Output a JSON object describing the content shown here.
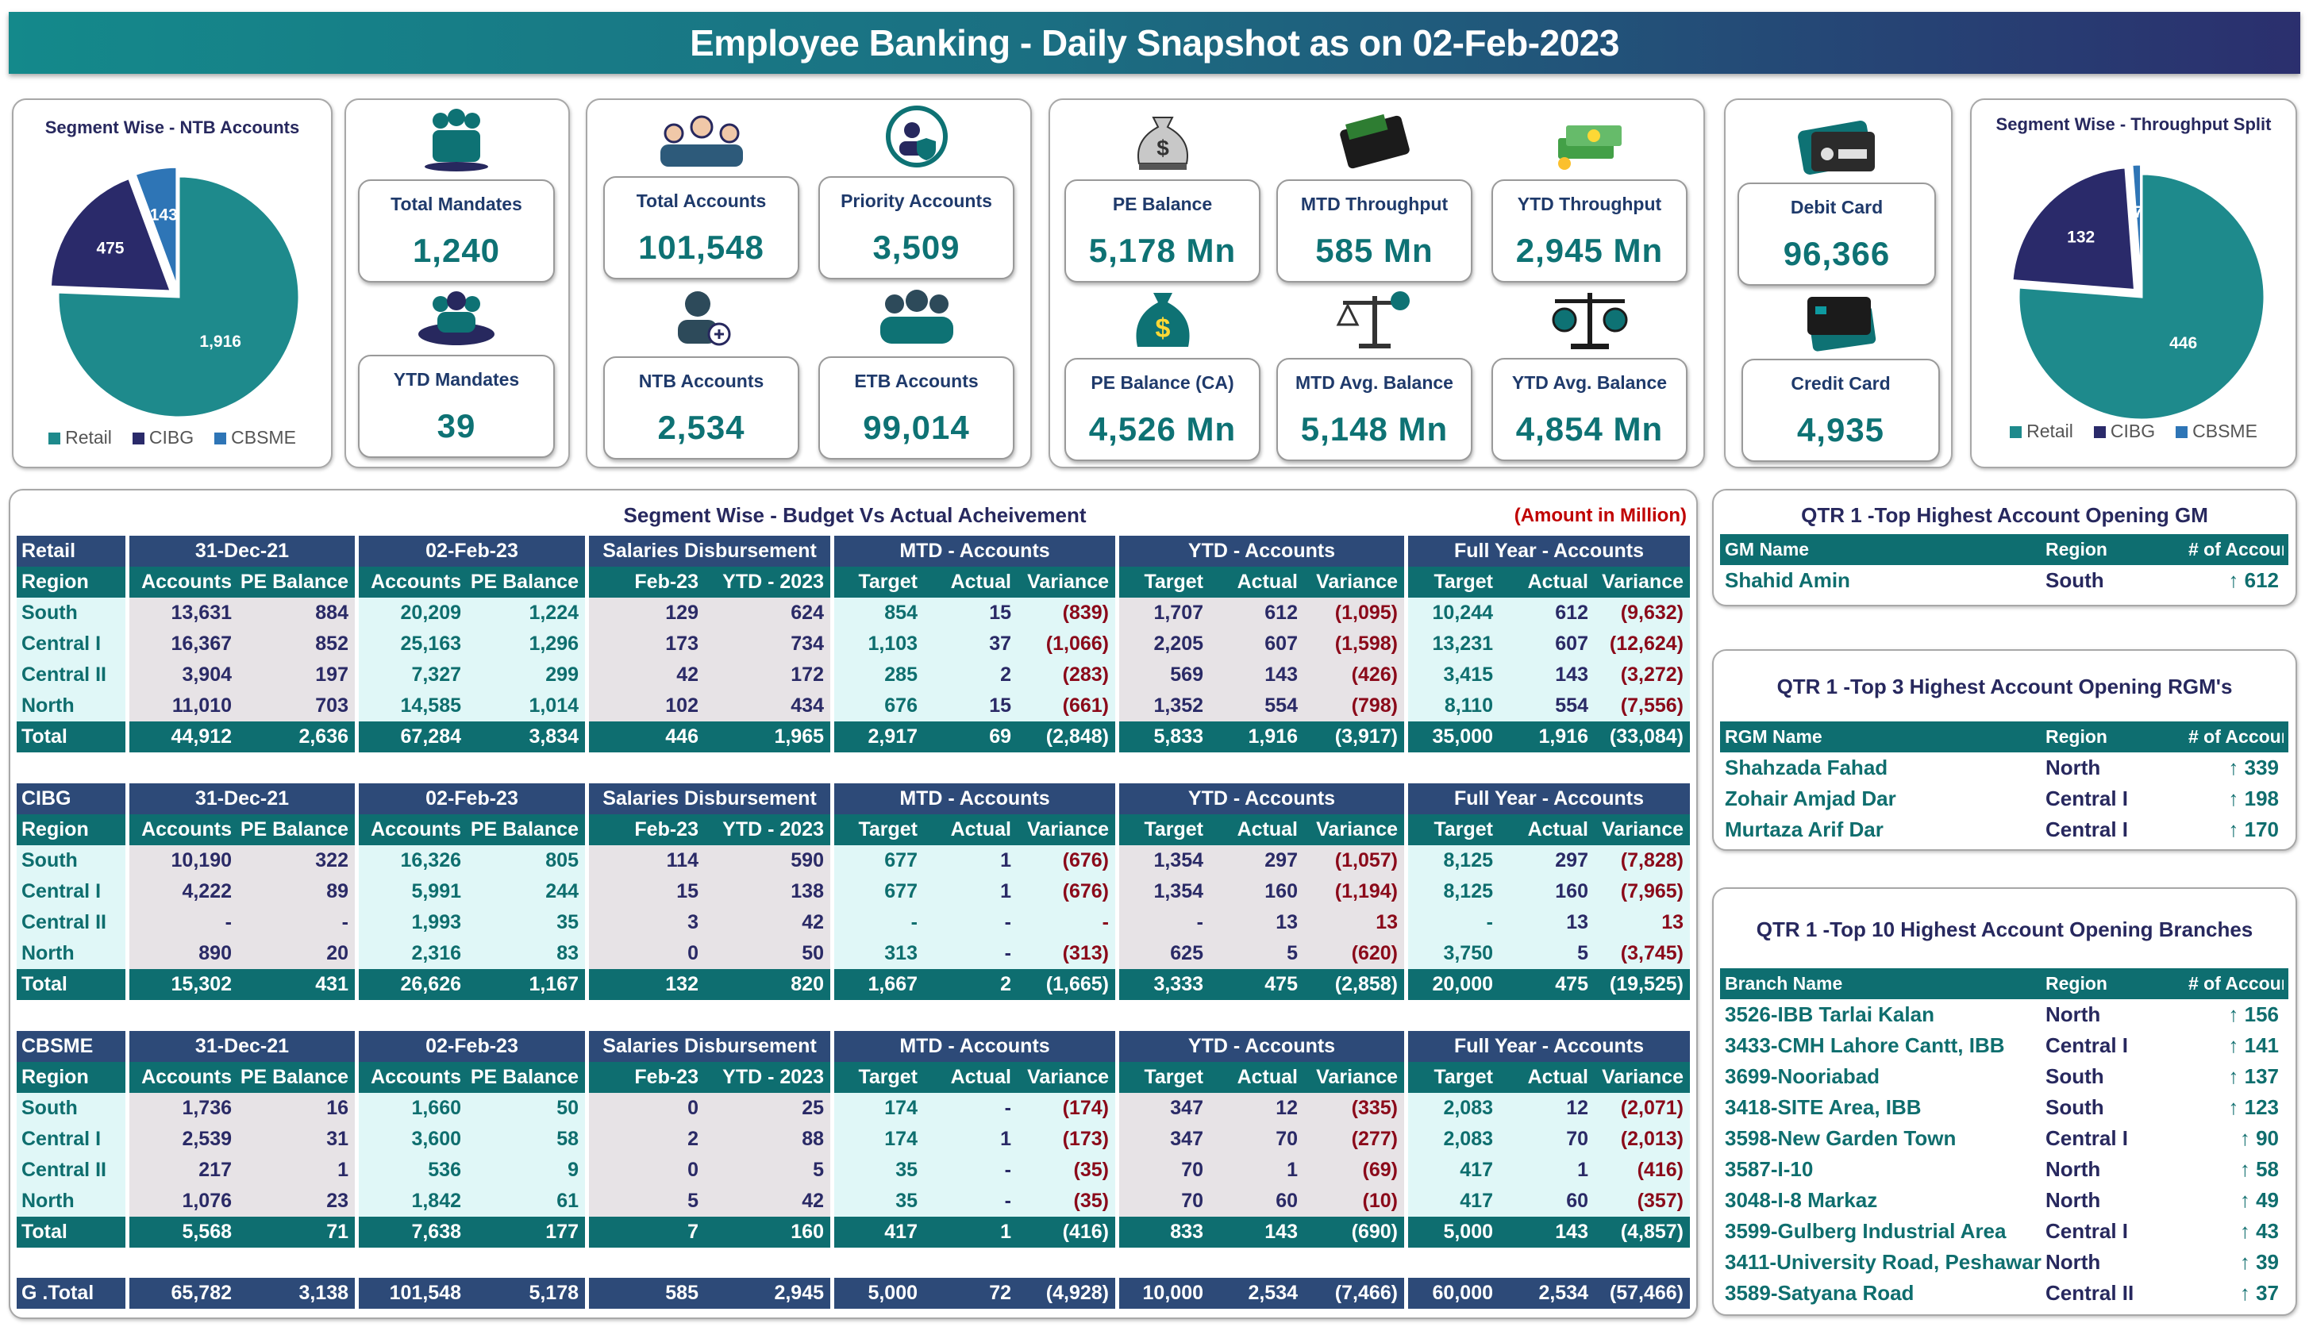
{
  "header": {
    "title": "Employee Banking - Daily Snapshot as on 02-Feb-2023"
  },
  "colors": {
    "retail": "#1e8a8c",
    "cibg": "#2a2a6a",
    "cbsme": "#2e75b6",
    "navy_header": "#2d4a78",
    "teal_header": "#0e6e70",
    "variance": "#8b0a1a"
  },
  "pie_ntb": {
    "title": "Segment Wise - NTB Accounts",
    "chart_data": {
      "type": "pie",
      "labels": [
        "Retail",
        "CIBG",
        "CBSME"
      ],
      "values": [
        1916,
        475,
        143
      ],
      "data_labels": [
        "1,916",
        "475",
        "143"
      ],
      "legend": "bottom"
    }
  },
  "pie_throughput": {
    "title": "Segment Wise - Throughput Split",
    "chart_data": {
      "type": "pie",
      "labels": [
        "Retail",
        "CIBG",
        "CBSME"
      ],
      "values": [
        446,
        132,
        7
      ],
      "data_labels": [
        "446",
        "132",
        "7"
      ],
      "legend": "bottom"
    }
  },
  "kpis": {
    "total_mandates": {
      "label": "Total Mandates",
      "value": "1,240",
      "icon": "people-group-icon"
    },
    "ytd_mandates": {
      "label": "YTD Mandates",
      "value": "39",
      "icon": "team-circle-icon"
    },
    "total_accounts": {
      "label": "Total Accounts",
      "value": "101,548",
      "icon": "users-icon"
    },
    "priority_accounts": {
      "label": "Priority Accounts",
      "value": "3,509",
      "icon": "priority-user-shield-icon"
    },
    "ntb_accounts": {
      "label": "NTB Accounts",
      "value": "2,534",
      "icon": "add-user-icon"
    },
    "etb_accounts": {
      "label": "ETB Accounts",
      "value": "99,014",
      "icon": "group-icon"
    },
    "pe_balance": {
      "label": "PE Balance",
      "value": "5,178 Mn",
      "icon": "money-bag-icon"
    },
    "mtd_throughput": {
      "label": "MTD Throughput",
      "value": "585 Mn",
      "icon": "wallet-icon"
    },
    "ytd_throughput": {
      "label": "YTD Throughput",
      "value": "2,945 Mn",
      "icon": "cash-stack-icon"
    },
    "pe_balance_ca": {
      "label": "PE Balance (CA)",
      "value": "4,526 Mn",
      "icon": "dollar-bag-icon"
    },
    "mtd_avg_balance": {
      "label": "MTD Avg. Balance",
      "value": "5,148 Mn",
      "icon": "balance-scale-icon"
    },
    "ytd_avg_balance": {
      "label": "YTD Avg. Balance",
      "value": "4,854 Mn",
      "icon": "justice-scale-icon"
    },
    "debit_card": {
      "label": "Debit Card",
      "value": "96,366",
      "icon": "debit-card-icon"
    },
    "credit_card": {
      "label": "Credit Card",
      "value": "4,935",
      "icon": "credit-card-icon"
    }
  },
  "table": {
    "title": "Segment Wise - Budget Vs Actual Acheivement",
    "unit_note": "(Amount in Million)",
    "group_headers": [
      "31-Dec-21",
      "02-Feb-23",
      "Salaries Disbursement",
      "MTD - Accounts",
      "YTD - Accounts",
      "Full Year - Accounts"
    ],
    "sub_headers": [
      "Region",
      "Accounts",
      "PE Balance",
      "Accounts",
      "PE Balance",
      "Feb-23",
      "YTD - 2023",
      "Target",
      "Actual",
      "Variance",
      "Target",
      "Actual",
      "Variance",
      "Target",
      "Actual",
      "Variance"
    ],
    "segments": [
      {
        "name": "Retail",
        "rows": [
          [
            "South",
            "13,631",
            "884",
            "20,209",
            "1,224",
            "129",
            "624",
            "854",
            "15",
            "(839)",
            "1,707",
            "612",
            "(1,095)",
            "10,244",
            "612",
            "(9,632)"
          ],
          [
            "Central I",
            "16,367",
            "852",
            "25,163",
            "1,296",
            "173",
            "734",
            "1,103",
            "37",
            "(1,066)",
            "2,205",
            "607",
            "(1,598)",
            "13,231",
            "607",
            "(12,624)"
          ],
          [
            "Central II",
            "3,904",
            "197",
            "7,327",
            "299",
            "42",
            "172",
            "285",
            "2",
            "(283)",
            "569",
            "143",
            "(426)",
            "3,415",
            "143",
            "(3,272)"
          ],
          [
            "North",
            "11,010",
            "703",
            "14,585",
            "1,014",
            "102",
            "434",
            "676",
            "15",
            "(661)",
            "1,352",
            "554",
            "(798)",
            "8,110",
            "554",
            "(7,556)"
          ]
        ],
        "total": [
          "Total",
          "44,912",
          "2,636",
          "67,284",
          "3,834",
          "446",
          "1,965",
          "2,917",
          "69",
          "(2,848)",
          "5,833",
          "1,916",
          "(3,917)",
          "35,000",
          "1,916",
          "(33,084)"
        ]
      },
      {
        "name": "CIBG",
        "rows": [
          [
            "South",
            "10,190",
            "322",
            "16,326",
            "805",
            "114",
            "590",
            "677",
            "1",
            "(676)",
            "1,354",
            "297",
            "(1,057)",
            "8,125",
            "297",
            "(7,828)"
          ],
          [
            "Central I",
            "4,222",
            "89",
            "5,991",
            "244",
            "15",
            "138",
            "677",
            "1",
            "(676)",
            "1,354",
            "160",
            "(1,194)",
            "8,125",
            "160",
            "(7,965)"
          ],
          [
            "Central II",
            "-",
            "-",
            "1,993",
            "35",
            "3",
            "42",
            "-",
            "-",
            "-",
            "-",
            "13",
            "13",
            "-",
            "13",
            "13"
          ],
          [
            "North",
            "890",
            "20",
            "2,316",
            "83",
            "0",
            "50",
            "313",
            "-",
            "(313)",
            "625",
            "5",
            "(620)",
            "3,750",
            "5",
            "(3,745)"
          ]
        ],
        "total": [
          "Total",
          "15,302",
          "431",
          "26,626",
          "1,167",
          "132",
          "820",
          "1,667",
          "2",
          "(1,665)",
          "3,333",
          "475",
          "(2,858)",
          "20,000",
          "475",
          "(19,525)"
        ]
      },
      {
        "name": "CBSME",
        "rows": [
          [
            "South",
            "1,736",
            "16",
            "1,660",
            "50",
            "0",
            "25",
            "174",
            "-",
            "(174)",
            "347",
            "12",
            "(335)",
            "2,083",
            "12",
            "(2,071)"
          ],
          [
            "Central I",
            "2,539",
            "31",
            "3,600",
            "58",
            "2",
            "88",
            "174",
            "1",
            "(173)",
            "347",
            "70",
            "(277)",
            "2,083",
            "70",
            "(2,013)"
          ],
          [
            "Central II",
            "217",
            "1",
            "536",
            "9",
            "0",
            "5",
            "35",
            "-",
            "(35)",
            "70",
            "1",
            "(69)",
            "417",
            "1",
            "(416)"
          ],
          [
            "North",
            "1,076",
            "23",
            "1,842",
            "61",
            "5",
            "42",
            "35",
            "-",
            "(35)",
            "70",
            "60",
            "(10)",
            "417",
            "60",
            "(357)"
          ]
        ],
        "total": [
          "Total",
          "5,568",
          "71",
          "7,638",
          "177",
          "7",
          "160",
          "417",
          "1",
          "(416)",
          "833",
          "143",
          "(690)",
          "5,000",
          "143",
          "(4,857)"
        ]
      }
    ],
    "grand_total": [
      "G .Total",
      "65,782",
      "3,138",
      "101,548",
      "5,178",
      "585",
      "2,945",
      "5,000",
      "72",
      "(4,928)",
      "10,000",
      "2,534",
      "(7,466)",
      "60,000",
      "2,534",
      "(57,466)"
    ]
  },
  "top_gm": {
    "title": "QTR 1 -Top Highest Account Opening GM",
    "headers": [
      "GM Name",
      "Region",
      "# of Account"
    ],
    "rows": [
      [
        "Shahid Amin",
        "South",
        "↑ 612"
      ]
    ]
  },
  "top_rgm": {
    "title": "QTR 1 -Top 3 Highest Account Opening RGM's",
    "headers": [
      "RGM Name",
      "Region",
      "# of Account"
    ],
    "rows": [
      [
        "Shahzada Fahad",
        "North",
        "↑ 339"
      ],
      [
        "Zohair Amjad Dar",
        "Central I",
        "↑ 198"
      ],
      [
        "Murtaza Arif Dar",
        "Central I",
        "↑ 170"
      ]
    ]
  },
  "top_branches": {
    "title": "QTR 1 -Top 10 Highest Account Opening Branches",
    "headers": [
      "Branch Name",
      "Region",
      "# of Account"
    ],
    "rows": [
      [
        "3526-IBB Tarlai Kalan",
        "North",
        "↑ 156"
      ],
      [
        "3433-CMH Lahore Cantt, IBB",
        "Central I",
        "↑ 141"
      ],
      [
        "3699-Nooriabad",
        "South",
        "↑ 137"
      ],
      [
        "3418-SITE Area, IBB",
        "South",
        "↑ 123"
      ],
      [
        "3598-New Garden Town",
        "Central I",
        "↑ 90"
      ],
      [
        "3587-I-10",
        "North",
        "↑ 58"
      ],
      [
        "3048-I-8 Markaz",
        "North",
        "↑ 49"
      ],
      [
        "3599-Gulberg Industrial Area",
        "Central I",
        "↑ 43"
      ],
      [
        "3411-University Road, Peshawar",
        "North",
        "↑ 39"
      ],
      [
        "3589-Satyana Road",
        "Central II",
        "↑ 37"
      ]
    ]
  }
}
